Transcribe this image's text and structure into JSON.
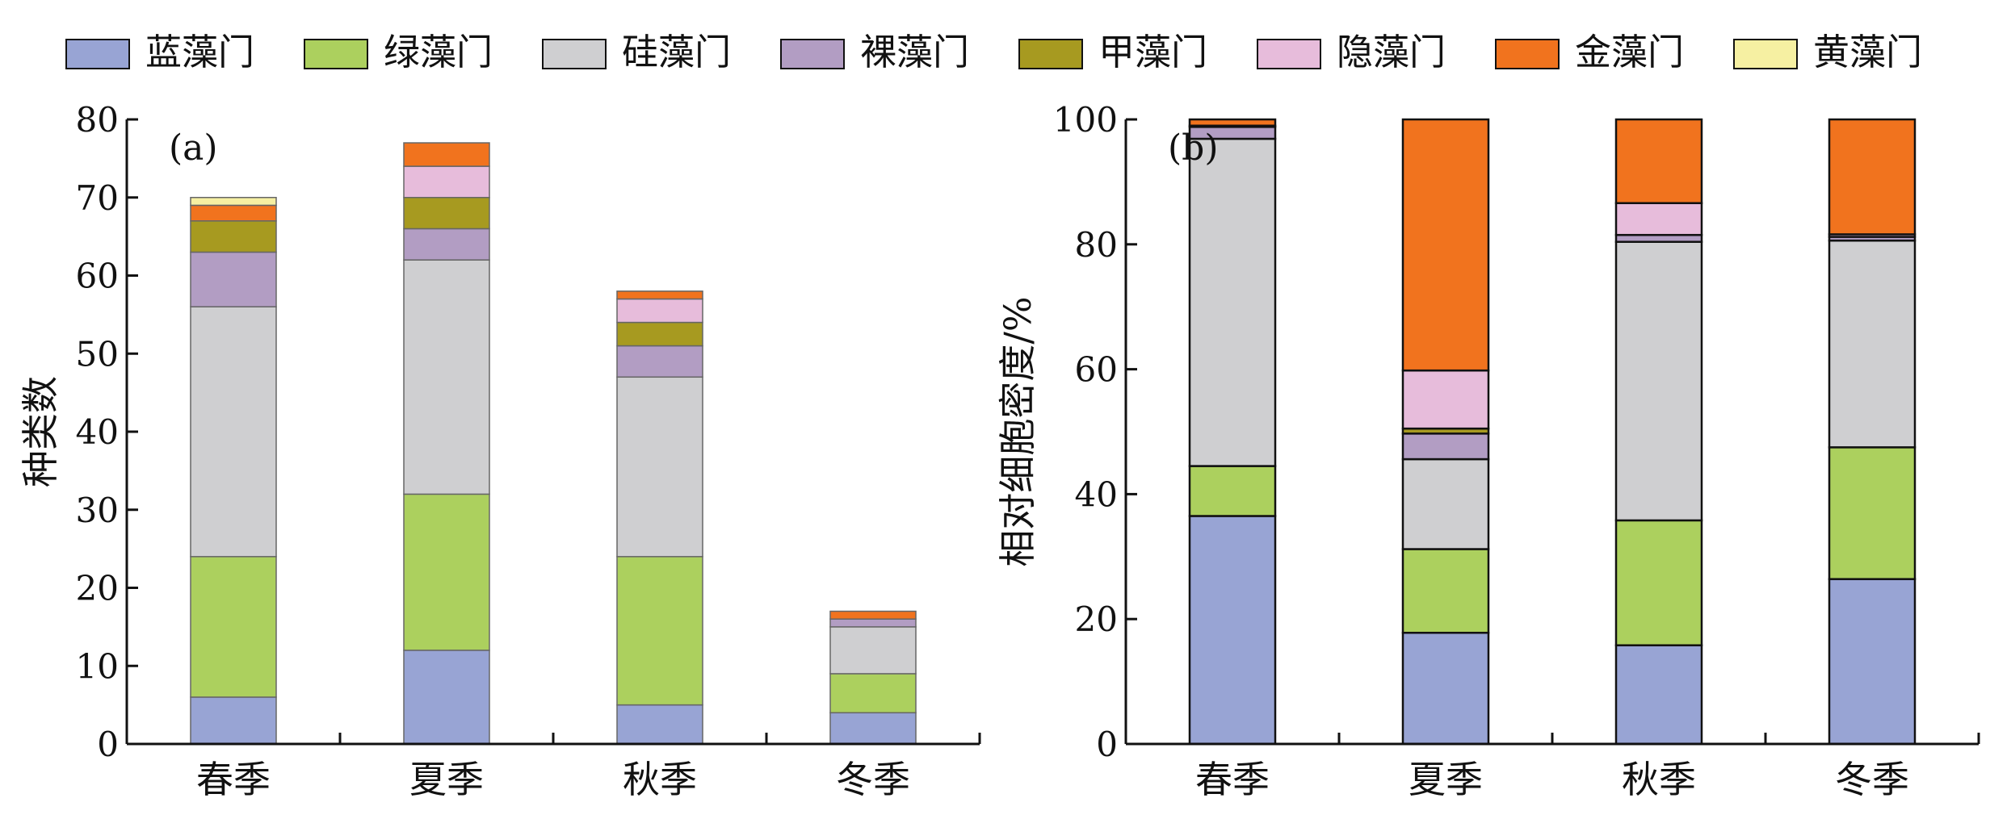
{
  "legend": [
    {
      "name": "蓝藻门",
      "color": "#98a4d4"
    },
    {
      "name": "绿藻门",
      "color": "#acd05e"
    },
    {
      "name": "硅藻门",
      "color": "#cfcfd1"
    },
    {
      "name": "裸藻门",
      "color": "#b29dc3"
    },
    {
      "name": "甲藻门",
      "color": "#a79a20"
    },
    {
      "name": "隐藻门",
      "color": "#e7bcdb"
    },
    {
      "name": "金藻门",
      "color": "#f1731e"
    },
    {
      "name": "黄藻门",
      "color": "#f6f0a2"
    }
  ],
  "chart_data": [
    {
      "type": "bar",
      "stacked": true,
      "panel_label": "(a)",
      "ylabel": "种类数",
      "xlabel": "",
      "ylim": [
        0,
        80
      ],
      "yticks": [
        0,
        10,
        20,
        30,
        40,
        50,
        60,
        70,
        80
      ],
      "categories": [
        "春季",
        "夏季",
        "秋季",
        "冬季"
      ],
      "series": [
        {
          "name": "蓝藻门",
          "values": [
            6,
            12,
            5,
            4
          ]
        },
        {
          "name": "绿藻门",
          "values": [
            18,
            20,
            19,
            5
          ]
        },
        {
          "name": "硅藻门",
          "values": [
            32,
            30,
            23,
            6
          ]
        },
        {
          "name": "裸藻门",
          "values": [
            7,
            4,
            4,
            1
          ]
        },
        {
          "name": "甲藻门",
          "values": [
            4,
            4,
            3,
            0
          ]
        },
        {
          "name": "隐藻门",
          "values": [
            0,
            4,
            3,
            0
          ]
        },
        {
          "name": "金藻门",
          "values": [
            2,
            3,
            1,
            1
          ]
        },
        {
          "name": "黄藻门",
          "values": [
            1,
            0,
            0,
            0
          ]
        }
      ]
    },
    {
      "type": "bar",
      "stacked": true,
      "panel_label": "(b)",
      "ylabel": "相对细胞密度/%",
      "xlabel": "",
      "ylim": [
        0,
        100
      ],
      "yticks": [
        0,
        20,
        40,
        60,
        80,
        100
      ],
      "categories": [
        "春季",
        "夏季",
        "秋季",
        "冬季"
      ],
      "series": [
        {
          "name": "蓝藻门",
          "values": [
            36.5,
            17.8,
            15.8,
            26.4
          ]
        },
        {
          "name": "绿藻门",
          "values": [
            8.0,
            13.4,
            20.0,
            21.1
          ]
        },
        {
          "name": "硅藻门",
          "values": [
            52.4,
            14.4,
            44.6,
            33.1
          ]
        },
        {
          "name": "裸藻门",
          "values": [
            1.9,
            4.1,
            1.1,
            0.6
          ]
        },
        {
          "name": "甲藻门",
          "values": [
            0,
            0.8,
            0,
            0
          ]
        },
        {
          "name": "隐藻门",
          "values": [
            0.2,
            9.3,
            5.1,
            0.4
          ]
        },
        {
          "name": "金藻门",
          "values": [
            1.0,
            40.2,
            13.4,
            18.4
          ]
        },
        {
          "name": "黄藻门",
          "values": [
            0,
            0,
            0,
            0
          ]
        }
      ]
    }
  ]
}
